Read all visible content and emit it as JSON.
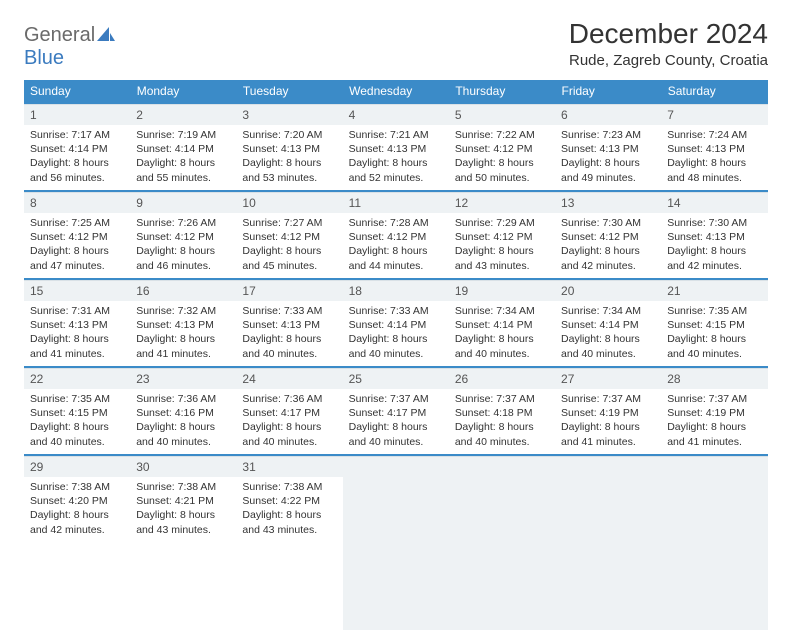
{
  "logo": {
    "part1": "General",
    "part2": "Blue"
  },
  "title": "December 2024",
  "location": "Rude, Zagreb County, Croatia",
  "colors": {
    "header_bg": "#3b8bc8",
    "row_divider": "#3b8bc8",
    "daynum_bg": "#eef2f4",
    "text": "#333333",
    "logo_gray": "#6a6a6a",
    "logo_blue": "#3b7bbf"
  },
  "typography": {
    "title_fontsize": 28,
    "location_fontsize": 15,
    "dow_fontsize": 12,
    "daynum_fontsize": 12,
    "body_fontsize": 10.5
  },
  "daysOfWeek": [
    "Sunday",
    "Monday",
    "Tuesday",
    "Wednesday",
    "Thursday",
    "Friday",
    "Saturday"
  ],
  "weeks": [
    [
      {
        "n": "1",
        "sr": "7:17 AM",
        "ss": "4:14 PM",
        "dl": "8 hours and 56 minutes."
      },
      {
        "n": "2",
        "sr": "7:19 AM",
        "ss": "4:14 PM",
        "dl": "8 hours and 55 minutes."
      },
      {
        "n": "3",
        "sr": "7:20 AM",
        "ss": "4:13 PM",
        "dl": "8 hours and 53 minutes."
      },
      {
        "n": "4",
        "sr": "7:21 AM",
        "ss": "4:13 PM",
        "dl": "8 hours and 52 minutes."
      },
      {
        "n": "5",
        "sr": "7:22 AM",
        "ss": "4:12 PM",
        "dl": "8 hours and 50 minutes."
      },
      {
        "n": "6",
        "sr": "7:23 AM",
        "ss": "4:13 PM",
        "dl": "8 hours and 49 minutes."
      },
      {
        "n": "7",
        "sr": "7:24 AM",
        "ss": "4:13 PM",
        "dl": "8 hours and 48 minutes."
      }
    ],
    [
      {
        "n": "8",
        "sr": "7:25 AM",
        "ss": "4:12 PM",
        "dl": "8 hours and 47 minutes."
      },
      {
        "n": "9",
        "sr": "7:26 AM",
        "ss": "4:12 PM",
        "dl": "8 hours and 46 minutes."
      },
      {
        "n": "10",
        "sr": "7:27 AM",
        "ss": "4:12 PM",
        "dl": "8 hours and 45 minutes."
      },
      {
        "n": "11",
        "sr": "7:28 AM",
        "ss": "4:12 PM",
        "dl": "8 hours and 44 minutes."
      },
      {
        "n": "12",
        "sr": "7:29 AM",
        "ss": "4:12 PM",
        "dl": "8 hours and 43 minutes."
      },
      {
        "n": "13",
        "sr": "7:30 AM",
        "ss": "4:12 PM",
        "dl": "8 hours and 42 minutes."
      },
      {
        "n": "14",
        "sr": "7:30 AM",
        "ss": "4:13 PM",
        "dl": "8 hours and 42 minutes."
      }
    ],
    [
      {
        "n": "15",
        "sr": "7:31 AM",
        "ss": "4:13 PM",
        "dl": "8 hours and 41 minutes."
      },
      {
        "n": "16",
        "sr": "7:32 AM",
        "ss": "4:13 PM",
        "dl": "8 hours and 41 minutes."
      },
      {
        "n": "17",
        "sr": "7:33 AM",
        "ss": "4:13 PM",
        "dl": "8 hours and 40 minutes."
      },
      {
        "n": "18",
        "sr": "7:33 AM",
        "ss": "4:14 PM",
        "dl": "8 hours and 40 minutes."
      },
      {
        "n": "19",
        "sr": "7:34 AM",
        "ss": "4:14 PM",
        "dl": "8 hours and 40 minutes."
      },
      {
        "n": "20",
        "sr": "7:34 AM",
        "ss": "4:14 PM",
        "dl": "8 hours and 40 minutes."
      },
      {
        "n": "21",
        "sr": "7:35 AM",
        "ss": "4:15 PM",
        "dl": "8 hours and 40 minutes."
      }
    ],
    [
      {
        "n": "22",
        "sr": "7:35 AM",
        "ss": "4:15 PM",
        "dl": "8 hours and 40 minutes."
      },
      {
        "n": "23",
        "sr": "7:36 AM",
        "ss": "4:16 PM",
        "dl": "8 hours and 40 minutes."
      },
      {
        "n": "24",
        "sr": "7:36 AM",
        "ss": "4:17 PM",
        "dl": "8 hours and 40 minutes."
      },
      {
        "n": "25",
        "sr": "7:37 AM",
        "ss": "4:17 PM",
        "dl": "8 hours and 40 minutes."
      },
      {
        "n": "26",
        "sr": "7:37 AM",
        "ss": "4:18 PM",
        "dl": "8 hours and 40 minutes."
      },
      {
        "n": "27",
        "sr": "7:37 AM",
        "ss": "4:19 PM",
        "dl": "8 hours and 41 minutes."
      },
      {
        "n": "28",
        "sr": "7:37 AM",
        "ss": "4:19 PM",
        "dl": "8 hours and 41 minutes."
      }
    ],
    [
      {
        "n": "29",
        "sr": "7:38 AM",
        "ss": "4:20 PM",
        "dl": "8 hours and 42 minutes."
      },
      {
        "n": "30",
        "sr": "7:38 AM",
        "ss": "4:21 PM",
        "dl": "8 hours and 43 minutes."
      },
      {
        "n": "31",
        "sr": "7:38 AM",
        "ss": "4:22 PM",
        "dl": "8 hours and 43 minutes."
      },
      null,
      null,
      null,
      null
    ]
  ],
  "labels": {
    "sunrise": "Sunrise:",
    "sunset": "Sunset:",
    "daylight": "Daylight:"
  }
}
